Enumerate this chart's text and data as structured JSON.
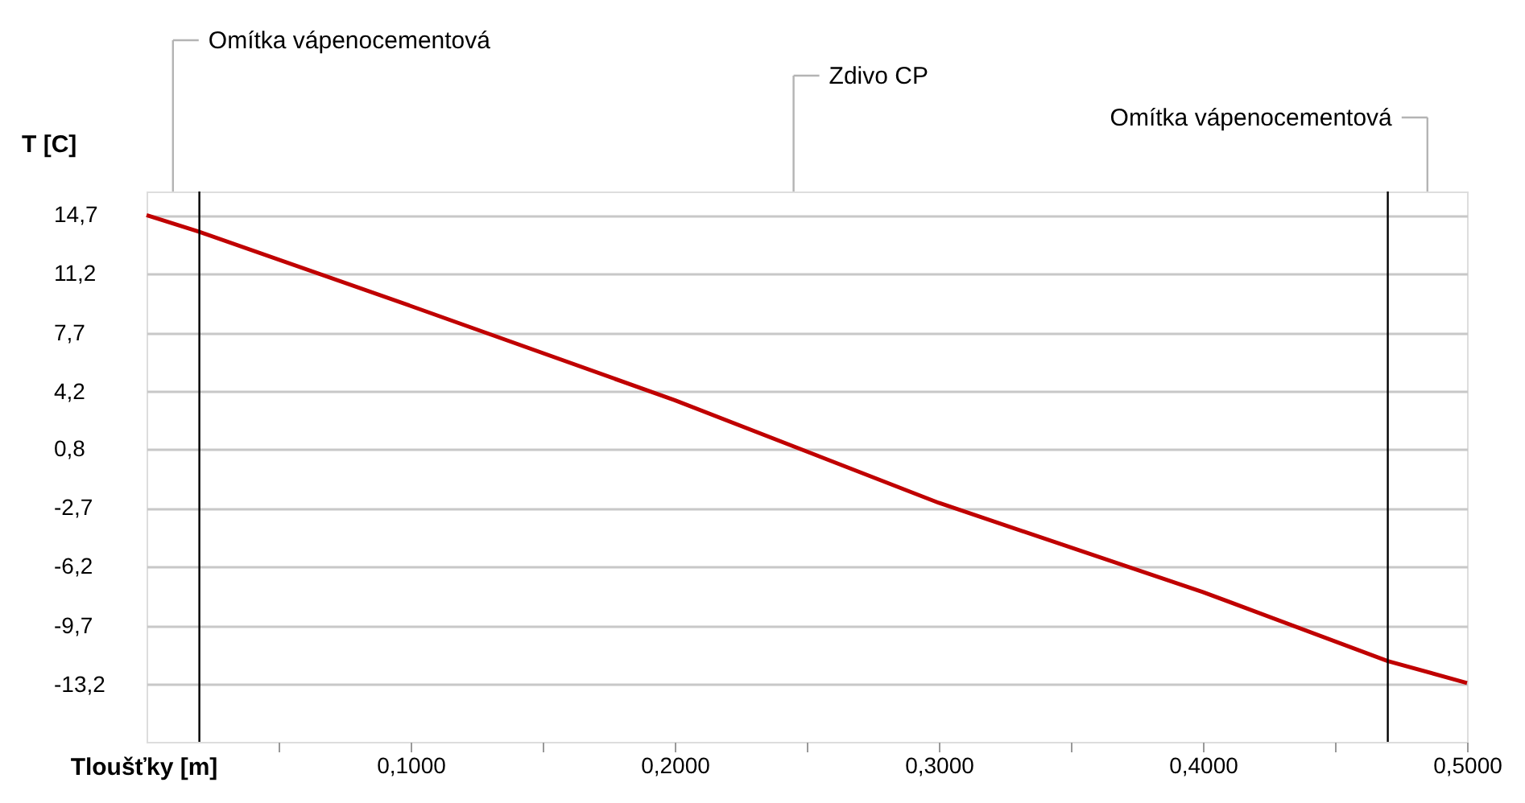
{
  "chart_data": {
    "type": "line",
    "xlabel": "Tloušťky [m]",
    "ylabel": "T [C]",
    "x": [
      0,
      0.02,
      0.1,
      0.2,
      0.3,
      0.4,
      0.47,
      0.5
    ],
    "series": [
      {
        "color": "#c00000",
        "values": [
          14.7,
          13.7,
          9.3,
          3.7,
          -2.4,
          -7.7,
          -11.8,
          -13.1
        ]
      }
    ],
    "xlim": [
      0,
      0.5
    ],
    "ylim": [
      -16.6,
      16.1
    ],
    "xticks": [
      {
        "value": 0.05,
        "label": null
      },
      {
        "value": 0.1,
        "label": "0,1000"
      },
      {
        "value": 0.15,
        "label": null
      },
      {
        "value": 0.2,
        "label": "0,2000"
      },
      {
        "value": 0.25,
        "label": null
      },
      {
        "value": 0.3,
        "label": "0,3000"
      },
      {
        "value": 0.35,
        "label": null
      },
      {
        "value": 0.4,
        "label": "0,4000"
      },
      {
        "value": 0.45,
        "label": null
      },
      {
        "value": 0.5,
        "label": "0,5000"
      }
    ],
    "yticks": [
      {
        "value": 14.7,
        "label": "14,7"
      },
      {
        "value": 11.2,
        "label": "11,2"
      },
      {
        "value": 7.7,
        "label": "7,7"
      },
      {
        "value": 4.2,
        "label": "4,2"
      },
      {
        "value": 0.8,
        "label": "0,8"
      },
      {
        "value": -2.7,
        "label": "-2,7"
      },
      {
        "value": -6.2,
        "label": "-6,2"
      },
      {
        "value": -9.7,
        "label": "-9,7"
      },
      {
        "value": -13.2,
        "label": "-13,2"
      }
    ],
    "ref_lines": [
      {
        "axis": "x",
        "value": 0.02,
        "color": "#000000"
      },
      {
        "axis": "x",
        "value": 0.47,
        "color": "#000000"
      }
    ],
    "annotations": [
      "Omítka vápenocementová",
      "Zdivo CP",
      "Omítka vápenocementová"
    ],
    "grid": "y",
    "marker": "none",
    "line_style": "solid"
  }
}
